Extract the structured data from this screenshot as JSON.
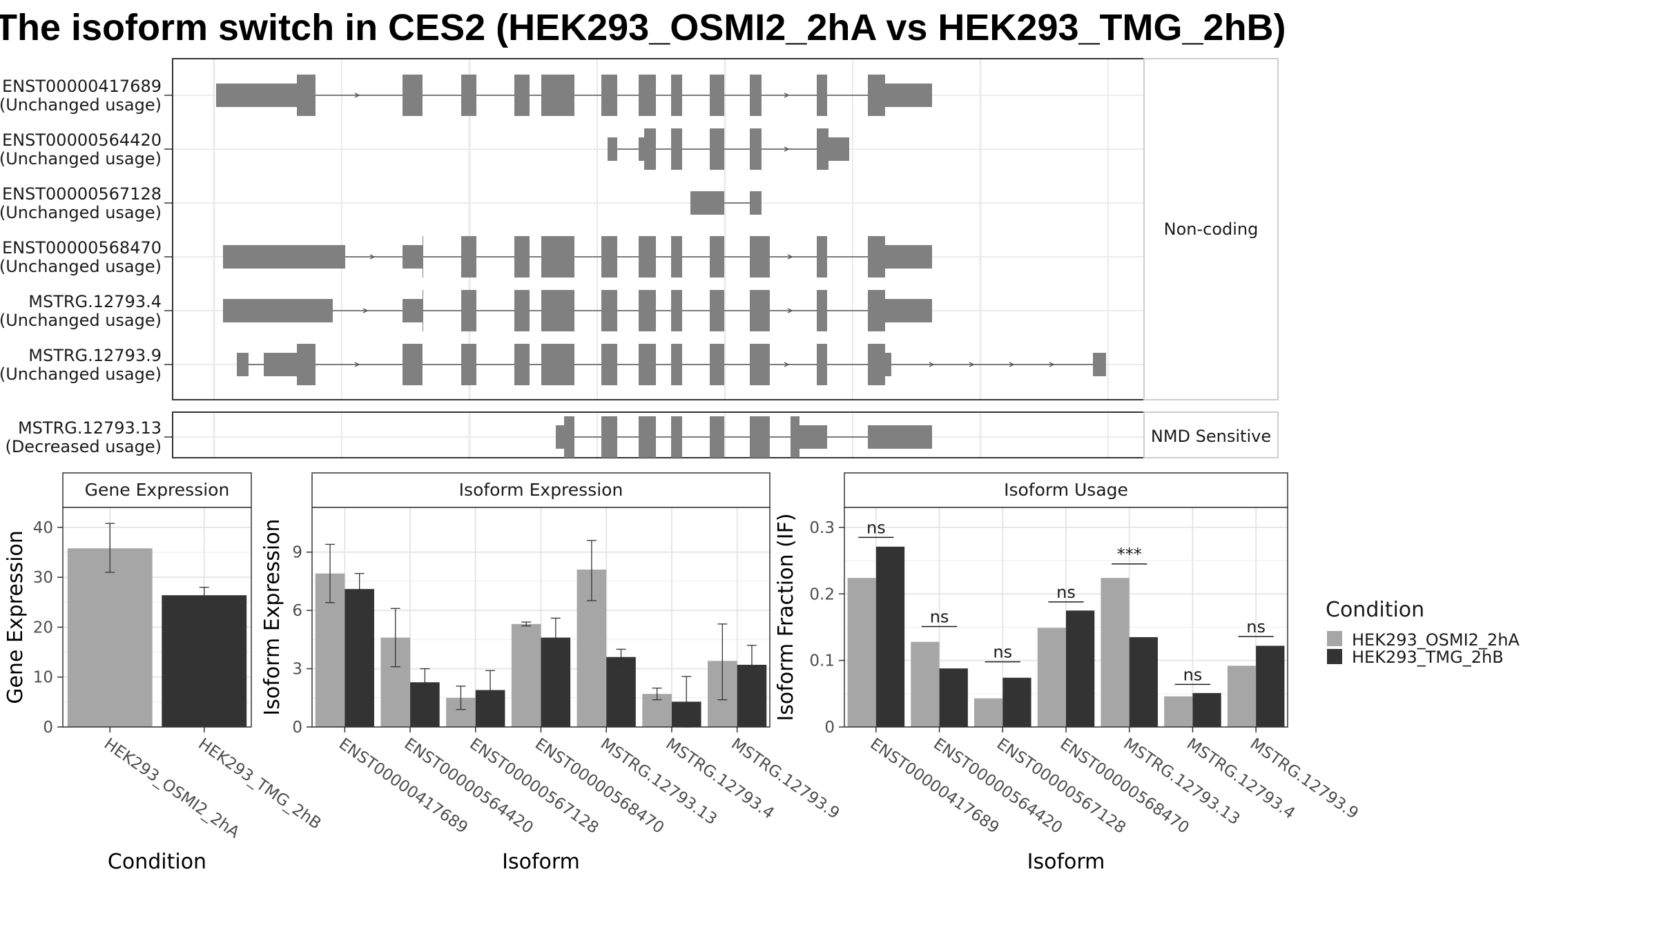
{
  "figure": {
    "title": "The isoform switch in CES2 (HEK293_OSMI2_2hA vs HEK293_TMG_2hB)"
  },
  "transcripts": {
    "panels": [
      {
        "strip_label": "Non-coding",
        "rows": [
          {
            "id": "ENST00000417689",
            "usage": "(Unchanged usage)"
          },
          {
            "id": "ENST00000564420",
            "usage": "(Unchanged usage)"
          },
          {
            "id": "ENST00000567128",
            "usage": "(Unchanged usage)"
          },
          {
            "id": "ENST00000568470",
            "usage": "(Unchanged usage)"
          },
          {
            "id": "MSTRG.12793.4",
            "usage": "(Unchanged usage)"
          },
          {
            "id": "MSTRG.12793.9",
            "usage": "(Unchanged usage)"
          }
        ]
      },
      {
        "strip_label": "NMD Sensitive",
        "rows": [
          {
            "id": "MSTRG.12793.13",
            "usage": "(Decreased usage)"
          }
        ]
      }
    ]
  },
  "legend": {
    "title": "Condition",
    "items": [
      {
        "label": "HEK293_OSMI2_2hA",
        "color": "#a6a6a6"
      },
      {
        "label": "HEK293_TMG_2hB",
        "color": "#333333"
      }
    ]
  },
  "chart_data": [
    {
      "type": "bar",
      "title": "Gene Expression",
      "xlabel": "Condition",
      "ylabel": "Gene Expression",
      "categories": [
        "HEK293_OSMI2_2hA",
        "HEK293_TMG_2hB"
      ],
      "values": [
        35.8,
        26.4
      ],
      "errors": [
        [
          31.0,
          40.8
        ],
        [
          25.0,
          28.0
        ]
      ],
      "colors": [
        "#a6a6a6",
        "#333333"
      ],
      "yticks": [
        0,
        10,
        20,
        30,
        40
      ],
      "ylim": [
        0,
        44
      ],
      "grid": true
    },
    {
      "type": "bar",
      "title": "Isoform Expression",
      "xlabel": "Isoform",
      "ylabel": "Isoform Expression",
      "categories": [
        "ENST00000417689",
        "ENST00000564420",
        "ENST00000567128",
        "ENST00000568470",
        "MSTRG.12793.13",
        "MSTRG.12793.4",
        "MSTRG.12793.9"
      ],
      "series": [
        {
          "name": "HEK293_OSMI2_2hA",
          "color": "#a6a6a6",
          "values": [
            7.9,
            4.6,
            1.5,
            5.3,
            8.1,
            1.7,
            3.4
          ],
          "errors": [
            [
              6.4,
              9.4
            ],
            [
              3.1,
              6.1
            ],
            [
              0.9,
              2.1
            ],
            [
              5.2,
              5.4
            ],
            [
              6.5,
              9.6
            ],
            [
              1.4,
              2.0
            ],
            [
              1.4,
              5.3
            ]
          ]
        },
        {
          "name": "HEK293_TMG_2hB",
          "color": "#333333",
          "values": [
            7.1,
            2.3,
            1.9,
            4.6,
            3.6,
            1.3,
            3.2
          ],
          "errors": [
            [
              6.4,
              7.9
            ],
            [
              1.6,
              3.0
            ],
            [
              0.9,
              2.9
            ],
            [
              3.6,
              5.6
            ],
            [
              3.2,
              4.0
            ],
            [
              0.0,
              2.6
            ],
            [
              2.3,
              4.2
            ]
          ]
        }
      ],
      "yticks": [
        0,
        3,
        6,
        9
      ],
      "ylim": [
        0,
        11.3
      ],
      "grid": true
    },
    {
      "type": "bar",
      "title": "Isoform Usage",
      "xlabel": "Isoform",
      "ylabel": "Isoform Fraction (IF)",
      "categories": [
        "ENST00000417689",
        "ENST00000564420",
        "ENST00000567128",
        "ENST00000568470",
        "MSTRG.12793.13",
        "MSTRG.12793.4",
        "MSTRG.12793.9"
      ],
      "series": [
        {
          "name": "HEK293_OSMI2_2hA",
          "color": "#a6a6a6",
          "values": [
            0.224,
            0.128,
            0.043,
            0.149,
            0.224,
            0.046,
            0.092
          ]
        },
        {
          "name": "HEK293_TMG_2hB",
          "color": "#333333",
          "values": [
            0.271,
            0.088,
            0.074,
            0.175,
            0.135,
            0.051,
            0.122
          ]
        }
      ],
      "significance": [
        "ns",
        "ns",
        "ns",
        "ns",
        "***",
        "ns",
        "ns"
      ],
      "significance_levels": [
        0.285,
        0.151,
        0.098,
        0.188,
        0.245,
        0.064,
        0.136
      ],
      "yticks": [
        0.0,
        0.1,
        0.2,
        0.3
      ],
      "ylim": [
        0,
        0.33
      ],
      "grid": true
    }
  ]
}
